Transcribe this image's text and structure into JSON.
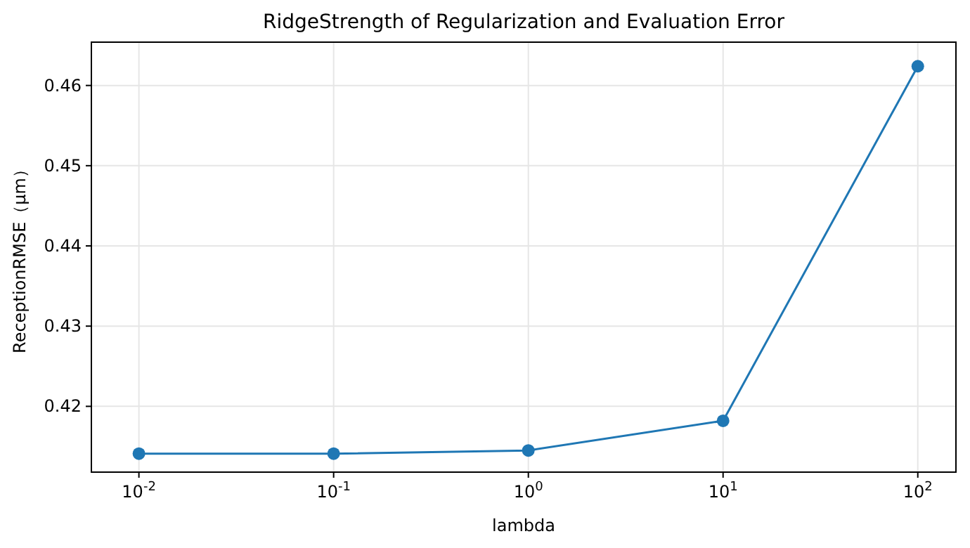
{
  "chart_data": {
    "type": "line",
    "title": "RidgeStrength of Regularization and Evaluation Error",
    "xlabel": "lambda",
    "ylabel": "ReceptionRMSE（μm）",
    "x": [
      0.01,
      0.1,
      1,
      10,
      100
    ],
    "series": [
      {
        "color": "#1f77b4",
        "values": [
          0.4141,
          0.4141,
          0.4145,
          0.4182,
          0.4624
        ]
      }
    ],
    "log": "x",
    "xlim": [
      0.0057,
      157
    ],
    "xticks": [
      {
        "value": 0.01,
        "label": "10$^{-2}$"
      },
      {
        "value": 0.1,
        "label": "10$^{-1}$"
      },
      {
        "value": 1,
        "label": "10$^{0}$"
      },
      {
        "value": 10,
        "label": "10$^{1}$"
      },
      {
        "value": 100,
        "label": "10$^{2}$"
      }
    ],
    "ylim": [
      0.4118,
      0.4654
    ],
    "yticks": [
      0.42,
      0.43,
      0.44,
      0.45,
      0.46
    ],
    "grid": true,
    "marker": "circle",
    "line_style": "solid"
  }
}
